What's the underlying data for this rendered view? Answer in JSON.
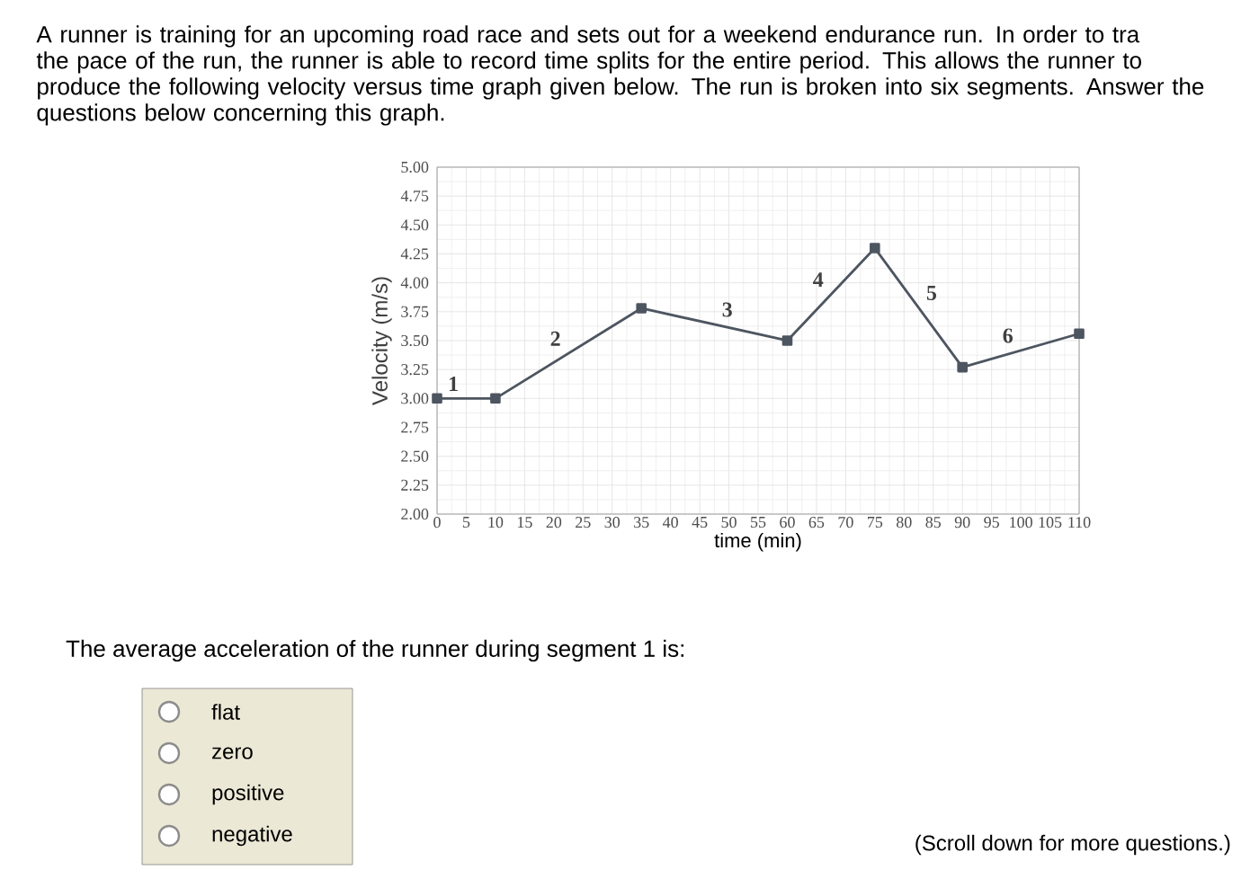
{
  "chart_data": {
    "type": "line",
    "title": "A runner is training for an upcoming road race and sets out for a weekend endurance run. In order to tra the pace of the run, the runner is able to record time splits for the entire period. This allows the runner to produce the following velocity versus time graph given below. The run is broken into six segments. Answer the questions below concerning this graph.",
    "xlabel": "time (min)",
    "ylabel": "Velocity (m/s)",
    "x": [
      0,
      10,
      35,
      60,
      75,
      90,
      110
    ],
    "series": [
      {
        "color": "#4d5560",
        "values": [
          3.0,
          3.0,
          3.78,
          3.5,
          4.3,
          3.27,
          3.56
        ]
      }
    ],
    "marker": "square",
    "grid": true,
    "xlim": [
      0,
      110
    ],
    "xticks": [
      0,
      5,
      10,
      15,
      20,
      25,
      30,
      35,
      40,
      45,
      50,
      55,
      60,
      65,
      70,
      75,
      80,
      85,
      90,
      95,
      100,
      105,
      110
    ],
    "ylim": [
      2.0,
      5.0
    ],
    "yticks": [
      {
        "value": 2.0,
        "label": "2.00"
      },
      {
        "value": 2.25,
        "label": "2.25"
      },
      {
        "value": 2.5,
        "label": "2.50"
      },
      {
        "value": 2.75,
        "label": "2.75"
      },
      {
        "value": 3.0,
        "label": "3.00"
      },
      {
        "value": 3.25,
        "label": "3.25"
      },
      {
        "value": 3.5,
        "label": "3.50"
      },
      {
        "value": 3.75,
        "label": "3.75"
      },
      {
        "value": 4.0,
        "label": "4.00"
      },
      {
        "value": 4.25,
        "label": "4.25"
      },
      {
        "value": 4.5,
        "label": "4.50"
      },
      {
        "value": 4.75,
        "label": "4.75"
      },
      {
        "value": 5.0,
        "label": "5.00"
      }
    ],
    "annotations": [
      "1",
      "2",
      "3",
      "4",
      "5",
      "6",
      "The average acceleration of the runner during segment 1 is:",
      "flat",
      "zero",
      "positive",
      "negative",
      "(Scroll down for more questions.)"
    ]
  }
}
